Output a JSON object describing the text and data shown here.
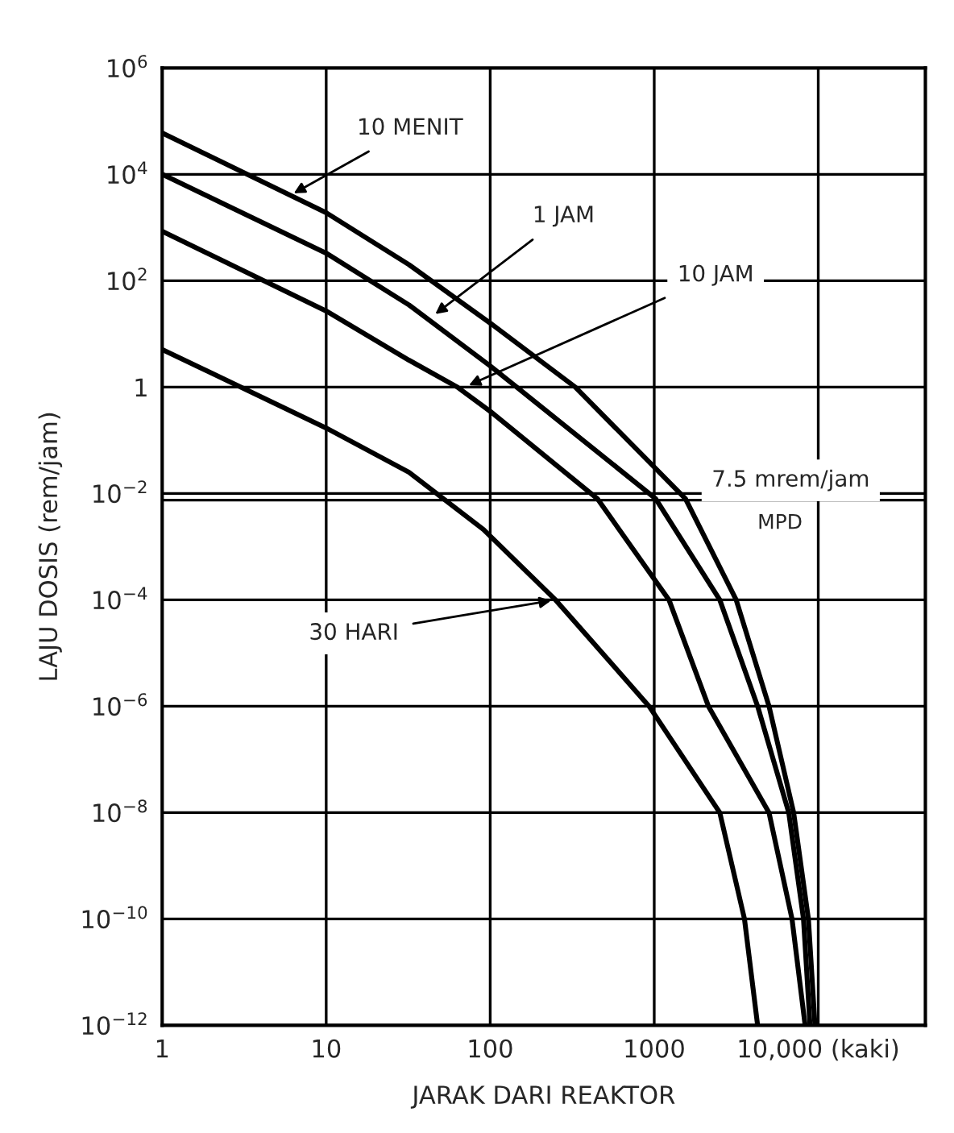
{
  "chart_data": {
    "type": "line",
    "xlabel": "JARAK DARI REAKTOR",
    "ylabel": "LAJU DOSIS (rem/jam)",
    "log": "xy",
    "grid": true,
    "marker": "none",
    "line_style": "solid",
    "xlim": [
      1,
      45000
    ],
    "ylim": [
      1e-12,
      1000000
    ],
    "xticks": [
      1,
      10,
      100,
      1000,
      {
        "value": 10000,
        "label": "10,000 (kaki)"
      }
    ],
    "yticks": [
      {
        "value": 1e-12,
        "label": "10$^{−12}$"
      },
      {
        "value": 1e-10,
        "label": "10$^{−10}$"
      },
      {
        "value": 1e-08,
        "label": "10$^{−8}$"
      },
      {
        "value": 1e-06,
        "label": "10$^{−6}$"
      },
      {
        "value": 0.0001,
        "label": "10$^{−4}$"
      },
      {
        "value": 0.01,
        "label": "10$^{−2}$"
      },
      1,
      {
        "value": 100,
        "label": "10$^{2}$"
      },
      {
        "value": 10000,
        "label": "10$^{4}$"
      },
      {
        "value": 1000000,
        "label": "10$^{6}$"
      }
    ],
    "series": [
      {
        "color": "#000000",
        "x": [
          1,
          10,
          32,
          100,
          330,
          1550,
          3160,
          5010,
          7080,
          8710,
          9550
        ],
        "values": [
          60000,
          1900,
          200,
          16,
          1,
          0.008,
          0.0001,
          1e-06,
          1e-08,
          1e-10,
          1e-12
        ]
      },
      {
        "color": "#000000",
        "x": [
          1,
          10,
          32,
          100,
          145,
          1020,
          2510,
          4270,
          6610,
          8130,
          8910
        ],
        "values": [
          10000,
          330,
          35,
          2.5,
          1,
          0.008,
          0.0001,
          1e-06,
          1e-08,
          1e-10,
          1e-12
        ]
      },
      {
        "color": "#000000",
        "x": [
          1,
          10,
          32,
          63,
          100,
          450,
          1230,
          2140,
          5010,
          6920,
          8320
        ],
        "values": [
          850,
          27,
          3.2,
          1,
          0.35,
          0.008,
          0.0001,
          1e-06,
          1e-08,
          1e-10,
          1e-12
        ]
      },
      {
        "color": "#000000",
        "x": [
          1,
          10,
          32,
          91,
          250,
          930,
          2510,
          3550,
          4270
        ],
        "values": [
          5.1,
          0.17,
          0.025,
          0.0021,
          0.0001,
          1e-06,
          1e-08,
          1e-10,
          1e-12
        ]
      }
    ],
    "ref_lines": [
      {
        "axis": "y",
        "value": 0.0075,
        "label": "7.5 mrem/jam",
        "color": "#000000"
      }
    ],
    "annotations": [
      {
        "text": "10 MENIT",
        "x": 6,
        "y": 4000
      },
      {
        "text": "1 JAM",
        "x": 44,
        "y": 21
      },
      {
        "text": "10 JAM",
        "x": 70,
        "y": 1
      },
      {
        "text": "30 HARI",
        "x": 250,
        "y": 0.0001
      },
      "MPD"
    ]
  }
}
